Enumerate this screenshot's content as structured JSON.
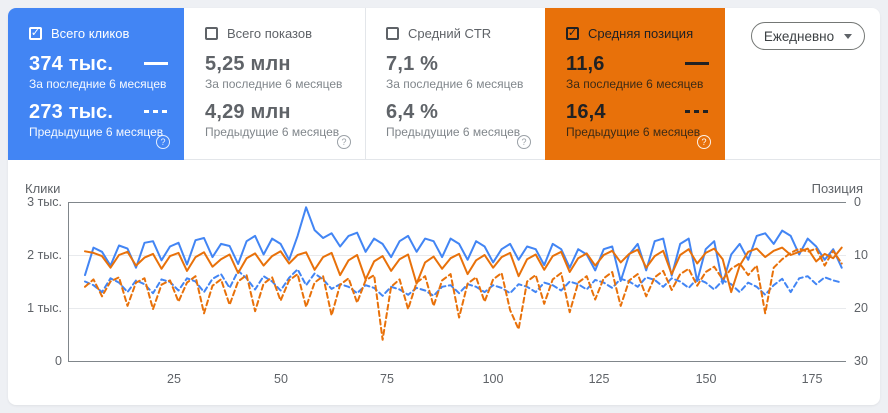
{
  "colors": {
    "blue": "#4285f4",
    "orange": "#e8710a",
    "panel": "#ffffff",
    "page_bg": "#eef0f4",
    "gray_text": "#5f6368"
  },
  "granularity": {
    "label": "Ежедневно"
  },
  "cards": [
    {
      "label": "Всего кликов",
      "checked": true,
      "current_value": "374 тыс.",
      "current_caption": "За последние 6 месяцев",
      "previous_value": "273 тыс.",
      "previous_caption": "Предыдущие 6 месяцев",
      "accent": "#4285f4"
    },
    {
      "label": "Всего показов",
      "checked": false,
      "current_value": "5,25 млн",
      "current_caption": "За последние 6 месяцев",
      "previous_value": "4,29 млн",
      "previous_caption": "Предыдущие 6 месяцев",
      "accent": "#ffffff"
    },
    {
      "label": "Средний CTR",
      "checked": false,
      "current_value": "7,1 %",
      "current_caption": "За последние 6 месяцев",
      "previous_value": "6,4 %",
      "previous_caption": "Предыдущие 6 месяцев",
      "accent": "#ffffff"
    },
    {
      "label": "Средняя позиция",
      "checked": true,
      "current_value": "11,6",
      "current_caption": "За последние 6 месяцев",
      "previous_value": "16,4",
      "previous_caption": "Предыдущие 6 месяцев",
      "accent": "#e8710a"
    }
  ],
  "help_glyph": "?",
  "chart_data": {
    "type": "line",
    "x_range": [
      0,
      183
    ],
    "left_axis": {
      "title": "Клики",
      "min": 0,
      "max": 3000,
      "tick_labels": [
        "3 тыс.",
        "2 тыс.",
        "1 тыс.",
        "0"
      ]
    },
    "right_axis": {
      "title": "Позиция",
      "min": 0,
      "max": 30,
      "inverted": true,
      "tick_labels": [
        "0",
        "10",
        "20",
        "30"
      ]
    },
    "x_tick_labels": [
      "25",
      "50",
      "75",
      "100",
      "125",
      "150",
      "175"
    ],
    "x_ticks": [
      25,
      50,
      75,
      100,
      125,
      150,
      175
    ],
    "x": [
      4,
      6,
      8,
      10,
      12,
      14,
      16,
      18,
      20,
      22,
      24,
      26,
      28,
      30,
      32,
      34,
      36,
      38,
      40,
      42,
      44,
      46,
      48,
      50,
      52,
      54,
      56,
      58,
      60,
      62,
      64,
      66,
      68,
      70,
      72,
      74,
      76,
      78,
      80,
      82,
      84,
      86,
      88,
      90,
      92,
      94,
      96,
      98,
      100,
      102,
      104,
      106,
      108,
      110,
      112,
      114,
      116,
      118,
      120,
      122,
      124,
      126,
      128,
      130,
      132,
      134,
      136,
      138,
      140,
      142,
      144,
      146,
      148,
      150,
      152,
      154,
      156,
      158,
      160,
      162,
      164,
      166,
      168,
      170,
      172,
      174,
      176,
      178,
      180,
      182
    ],
    "series": [
      {
        "name": "Клики — за последние 6 месяцев",
        "axis": "left",
        "color": "#4285f4",
        "style": "solid",
        "values": [
          1620,
          2140,
          2060,
          1800,
          2180,
          2120,
          1760,
          2230,
          2260,
          1900,
          2160,
          2230,
          1820,
          2280,
          2320,
          1960,
          2210,
          2170,
          1830,
          2260,
          2360,
          2010,
          2310,
          2210,
          1910,
          2360,
          2900,
          2470,
          2320,
          2410,
          2160,
          2360,
          2420,
          2060,
          2310,
          2210,
          1960,
          2260,
          2360,
          2060,
          2310,
          2260,
          1960,
          2310,
          2210,
          1910,
          2260,
          2160,
          1860,
          2110,
          2210,
          1910,
          2160,
          2110,
          1810,
          2210,
          2110,
          1760,
          2110,
          2010,
          1710,
          2110,
          2160,
          1510,
          2010,
          2210,
          1710,
          2260,
          2310,
          1610,
          2210,
          2310,
          1510,
          2110,
          2260,
          1460,
          2010,
          2210,
          1910,
          2360,
          2410,
          2210,
          2460,
          2360,
          2010,
          2310,
          2160,
          1910,
          2110,
          1760
        ]
      },
      {
        "name": "Клики — предыдущие 6 месяцев",
        "axis": "left",
        "color": "#4285f4",
        "style": "dashed",
        "values": [
          1500,
          1430,
          1300,
          1560,
          1480,
          1300,
          1520,
          1450,
          1280,
          1540,
          1490,
          1330,
          1560,
          1500,
          1300,
          1550,
          1640,
          1380,
          1700,
          1560,
          1350,
          1600,
          1500,
          1330,
          1570,
          1730,
          1430,
          1650,
          1540,
          1360,
          1450,
          1400,
          1280,
          1430,
          1380,
          1230,
          1400,
          1350,
          1250,
          1380,
          1330,
          1230,
          1400,
          1430,
          1280,
          1450,
          1400,
          1300,
          1430,
          1380,
          1280,
          1450,
          1400,
          1300,
          1480,
          1430,
          1330,
          1500,
          1450,
          1350,
          1530,
          1480,
          1380,
          1550,
          1500,
          1400,
          1580,
          1530,
          1400,
          1560,
          1500,
          1380,
          1550,
          1480,
          1350,
          1520,
          1450,
          1300,
          1480,
          1400,
          1250,
          1430,
          1550,
          1300,
          1560,
          1600,
          1450,
          1580,
          1520,
          1480
        ]
      },
      {
        "name": "Средняя позиция — за последние 6 месяцев",
        "axis": "right",
        "color": "#e8710a",
        "style": "solid",
        "values": [
          9.3,
          9.6,
          10.2,
          12.4,
          10.0,
          9.4,
          12.0,
          10.5,
          9.8,
          12.6,
          10.2,
          9.6,
          13.0,
          10.4,
          9.5,
          12.2,
          10.8,
          9.9,
          13.4,
          10.6,
          9.7,
          12.0,
          10.2,
          9.3,
          11.6,
          10.0,
          9.5,
          12.8,
          10.4,
          9.6,
          13.8,
          11.0,
          10.0,
          14.6,
          11.2,
          10.2,
          13.0,
          10.8,
          9.9,
          15.4,
          11.4,
          10.3,
          12.6,
          10.6,
          9.8,
          13.6,
          11.0,
          10.0,
          12.4,
          10.4,
          9.6,
          14.0,
          10.8,
          9.9,
          12.8,
          10.2,
          9.4,
          13.2,
          10.6,
          9.7,
          12.0,
          10.0,
          9.2,
          11.4,
          9.8,
          9.0,
          12.4,
          10.2,
          9.2,
          13.6,
          10.0,
          8.9,
          11.6,
          9.6,
          8.8,
          10.8,
          17.0,
          12.0,
          9.4,
          8.8,
          10.4,
          9.2,
          8.6,
          10.0,
          9.4,
          8.8,
          11.2,
          9.8,
          10.6,
          8.6
        ]
      },
      {
        "name": "Средняя позиция — предыдущие 6 месяцев",
        "axis": "right",
        "color": "#e8710a",
        "style": "dashed",
        "values": [
          16.0,
          14.6,
          17.8,
          15.0,
          14.2,
          19.6,
          15.2,
          14.4,
          20.2,
          15.6,
          14.8,
          18.8,
          15.2,
          14.0,
          21.0,
          15.8,
          14.6,
          19.4,
          15.0,
          13.8,
          20.6,
          15.4,
          14.2,
          18.6,
          14.8,
          13.6,
          19.8,
          15.2,
          14.0,
          21.4,
          15.6,
          14.4,
          19.0,
          14.8,
          13.8,
          26.0,
          16.0,
          14.6,
          20.2,
          15.2,
          14.0,
          19.6,
          14.8,
          13.6,
          21.8,
          15.4,
          14.2,
          18.8,
          14.6,
          13.4,
          20.4,
          24.0,
          15.0,
          13.8,
          19.2,
          14.6,
          13.4,
          20.8,
          15.2,
          14.0,
          18.4,
          14.4,
          13.2,
          19.6,
          14.8,
          13.6,
          17.8,
          14.2,
          13.0,
          16.6,
          13.6,
          12.6,
          15.8,
          13.2,
          12.2,
          14.6,
          12.6,
          11.6,
          13.8,
          12.0,
          21.0,
          12.4,
          10.8,
          9.6,
          8.8,
          9.4,
          8.8,
          12.0,
          9.2,
          11.6
        ]
      }
    ]
  }
}
